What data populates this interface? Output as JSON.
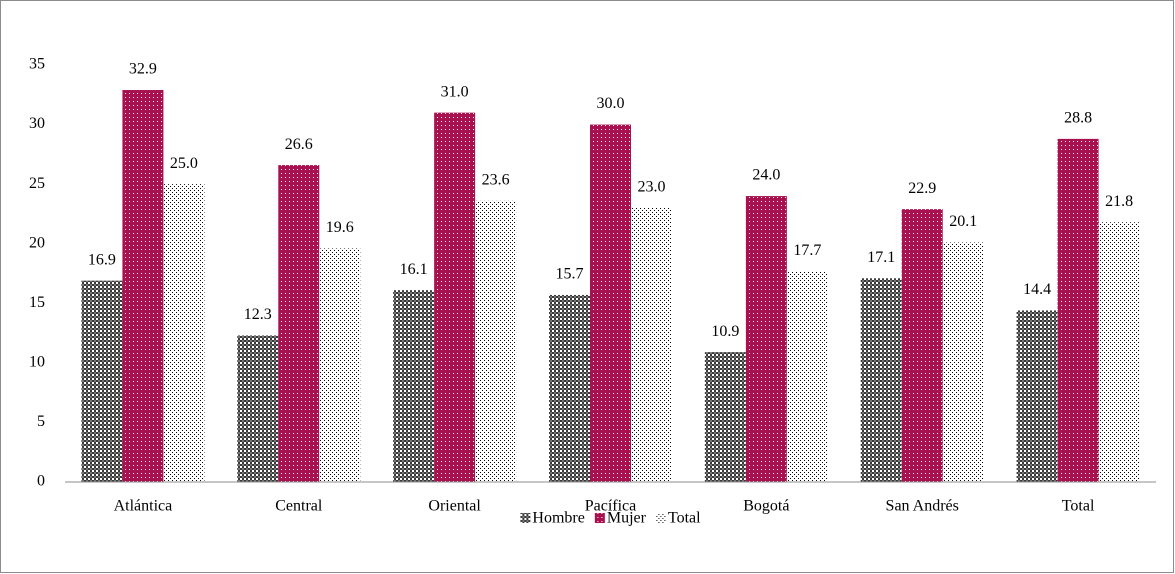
{
  "chart_data": {
    "type": "bar",
    "categories": [
      "Atlántica",
      "Central",
      "Oriental",
      "Pacífica",
      "Bogotá",
      "San Andrés",
      "Total"
    ],
    "series": [
      {
        "name": "Hombre",
        "color": "#3a3a3a",
        "pattern": "checker",
        "values": [
          16.9,
          12.3,
          16.1,
          15.7,
          10.9,
          17.1,
          14.4
        ],
        "value_labels": [
          "16.9",
          "12.3",
          "16.1",
          "15.7",
          "10.9",
          "17.1",
          "14.4"
        ]
      },
      {
        "name": "Mujer",
        "color": "#a8104f",
        "pattern": "dense-dots",
        "values": [
          32.9,
          26.6,
          31,
          30,
          24,
          22.9,
          28.8
        ],
        "value_labels": [
          "32.9",
          "26.6",
          "31.0",
          "30.0",
          "24.0",
          "22.9",
          "28.8"
        ]
      },
      {
        "name": "Total",
        "color": "#000000",
        "pattern": "dots",
        "values": [
          25,
          19.6,
          23.6,
          23,
          17.7,
          20.1,
          21.8
        ],
        "value_labels": [
          "25.0",
          "19.6",
          "23.6",
          "23.0",
          "17.7",
          "20.1",
          "21.8"
        ]
      }
    ],
    "ylim": [
      0,
      35
    ],
    "yticks": [
      0,
      5,
      10,
      15,
      20,
      25,
      30,
      35
    ],
    "grid": false,
    "legend": "bottom"
  }
}
